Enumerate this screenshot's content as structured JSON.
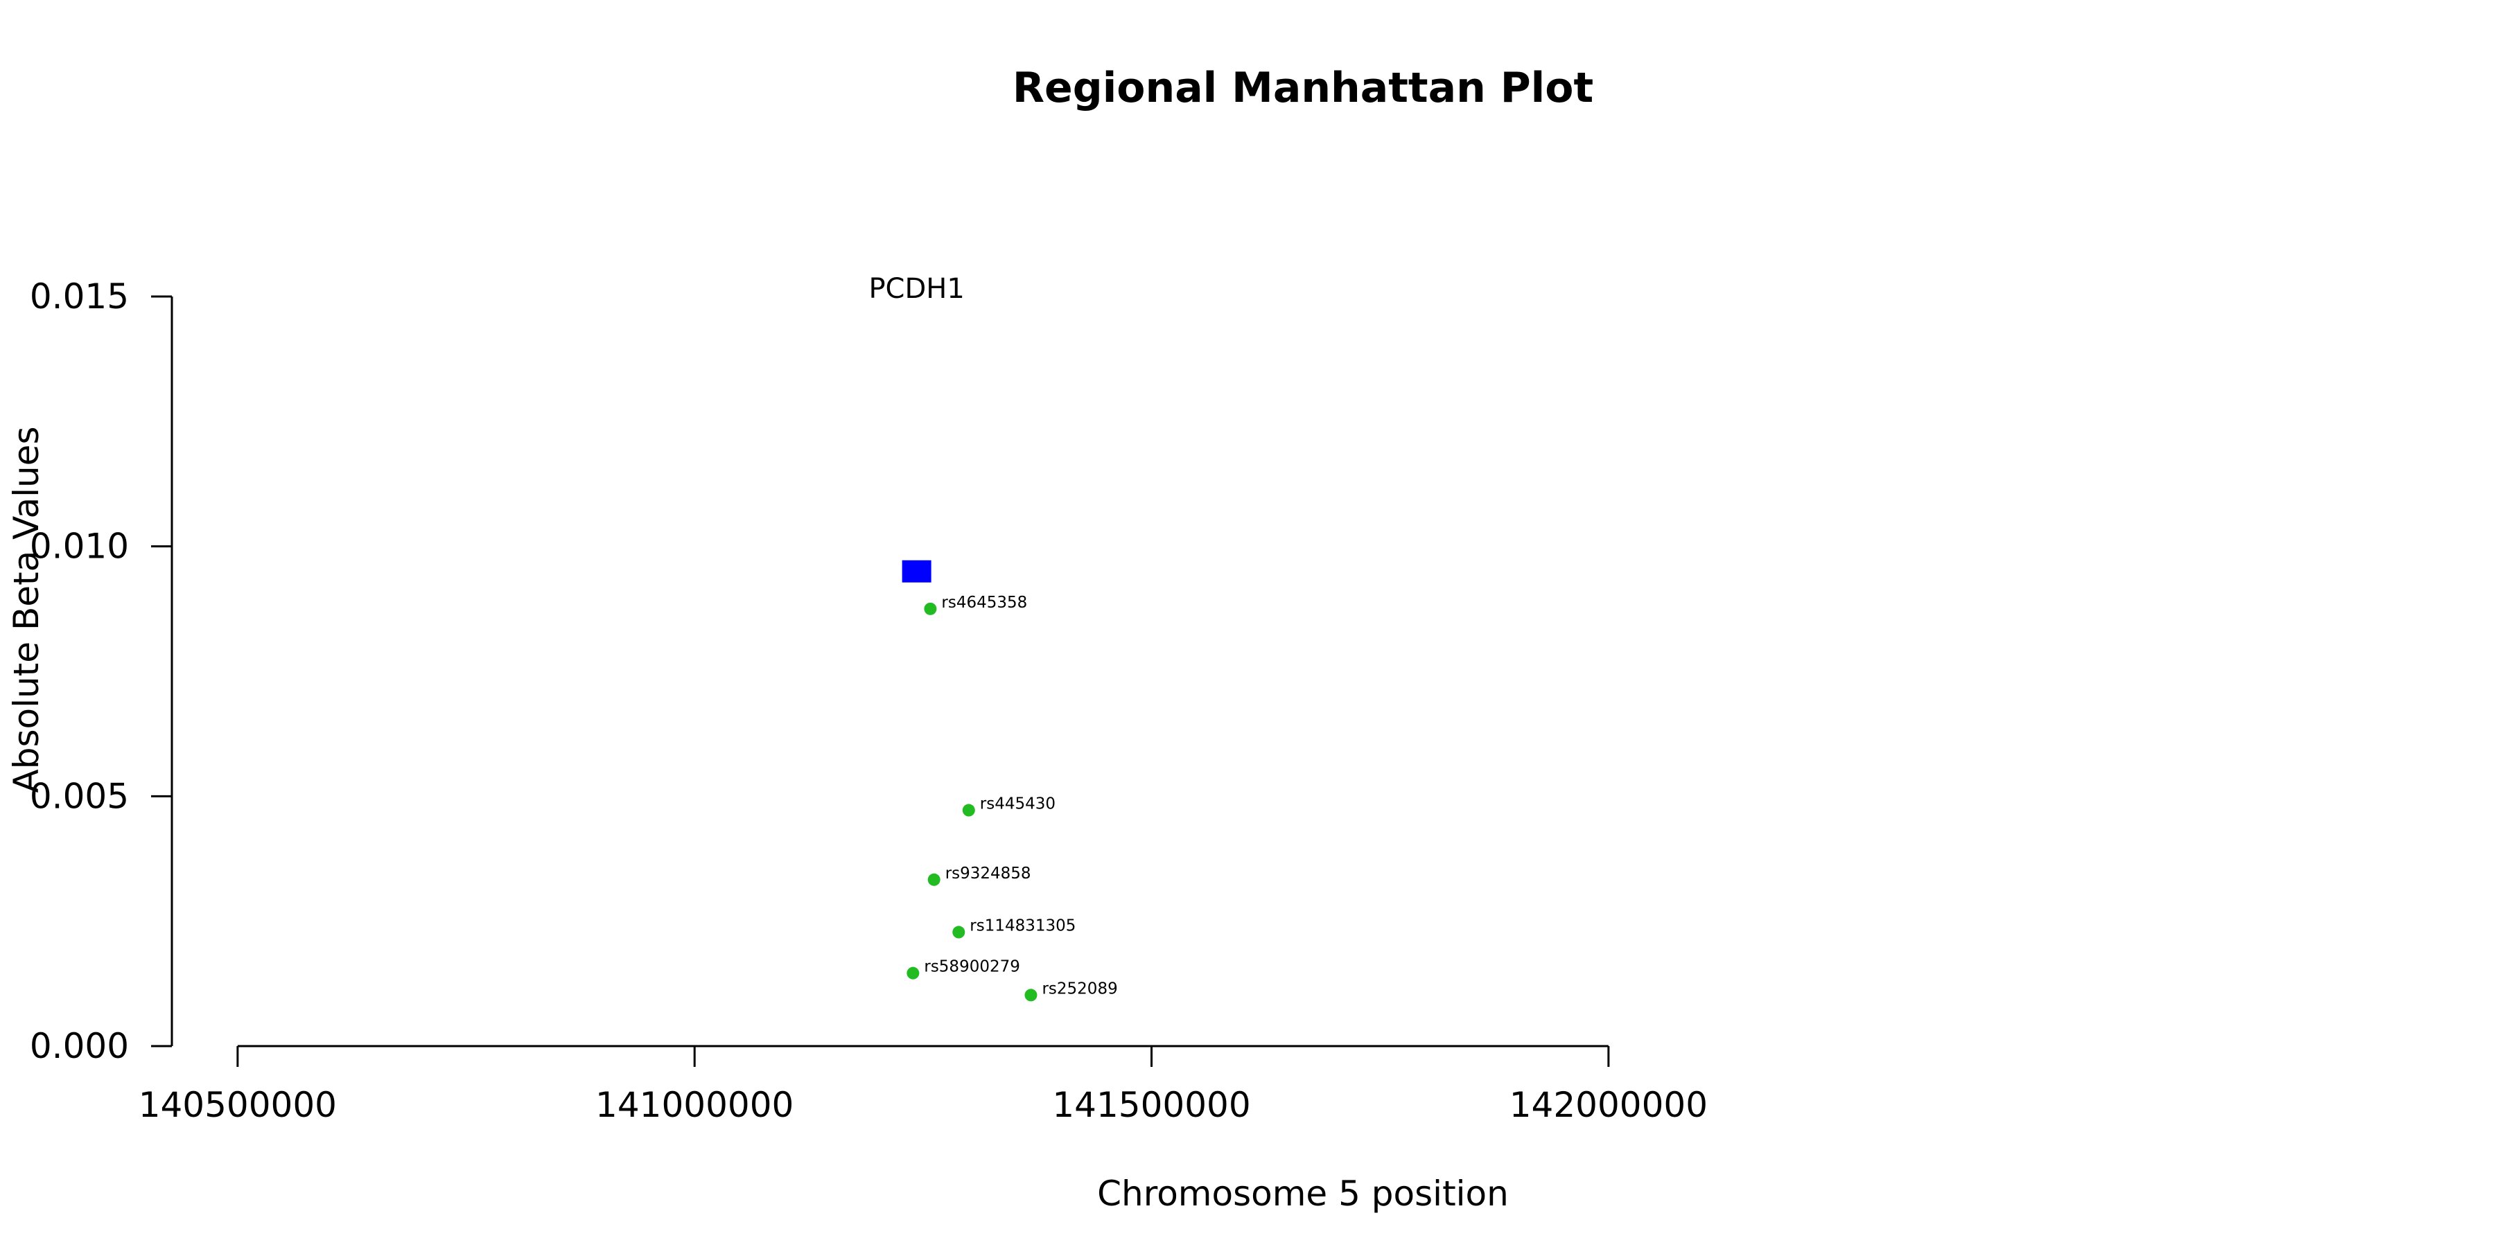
{
  "chart_data": {
    "type": "scatter",
    "title": "Regional Manhattan Plot",
    "xlabel": "Chromosome 5 position",
    "ylabel": "Absolute Beta Values",
    "xlim": [
      140240000,
      142970000
    ],
    "ylim": [
      0,
      0.015
    ],
    "xticks": [
      140500000,
      141000000,
      141500000,
      142000000
    ],
    "xtick_labels": [
      "140500000",
      "141000000",
      "141500000",
      "142000000"
    ],
    "yticks": [
      0,
      0.005,
      0.01,
      0.015
    ],
    "ytick_labels": [
      "0.000",
      "0.005",
      "0.010",
      "0.015"
    ],
    "grid": false,
    "gene": {
      "name": "PCDH1",
      "x": 141243000,
      "y": 0.0095,
      "color": "#0000ff",
      "marker": "square"
    },
    "snp_color": "#22bb22",
    "points": [
      {
        "label": "rs4645358",
        "x": 141258000,
        "y": 0.00875
      },
      {
        "label": "rs445430",
        "x": 141300000,
        "y": 0.00472
      },
      {
        "label": "rs9324858",
        "x": 141262000,
        "y": 0.00333
      },
      {
        "label": "rs114831305",
        "x": 141289000,
        "y": 0.00228
      },
      {
        "label": "rs58900279",
        "x": 141239000,
        "y": 0.00146
      },
      {
        "label": "rs252089",
        "x": 141368000,
        "y": 0.00102
      }
    ]
  }
}
